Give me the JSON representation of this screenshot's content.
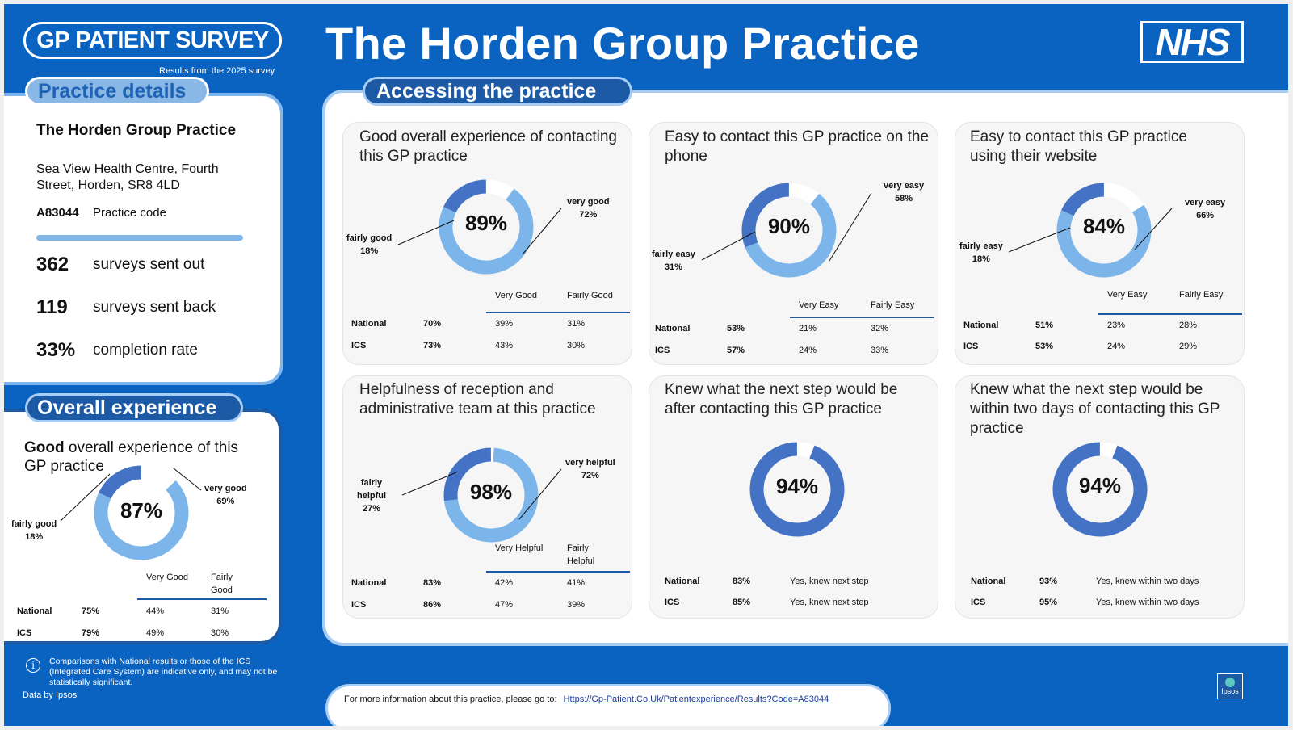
{
  "header": {
    "survey_badge": "GP PATIENT SURVEY",
    "survey_sub": "Results from the 2025 survey",
    "title": "The Horden Group Practice",
    "nhs_logo": "NHS"
  },
  "practice_details": {
    "tab": "Practice details",
    "name": "The Horden Group Practice",
    "address": "Sea View Health Centre, Fourth Street, Horden, SR8 4LD",
    "code": "A83044",
    "code_label": "Practice code",
    "stats": [
      {
        "value": "362",
        "label": "surveys sent out"
      },
      {
        "value": "119",
        "label": "surveys sent back"
      },
      {
        "value": "33%",
        "label": "completion rate"
      }
    ]
  },
  "overall": {
    "tab": "Overall experience",
    "heading_bold": "Good",
    "heading_rest": "overall experience of this GP practice",
    "center": "87%",
    "label_a": [
      "very good",
      "69%"
    ],
    "label_b": [
      "fairly good",
      "18%"
    ],
    "col_a": [
      "Very Good"
    ],
    "col_b": [
      "Fairly",
      "Good"
    ],
    "rows": [
      [
        "National",
        "75%",
        "44%",
        "31%"
      ],
      [
        "ICS",
        "79%",
        "49%",
        "30%"
      ]
    ]
  },
  "accessing": {
    "tab": "Accessing the practice",
    "cards": [
      {
        "title": "Good overall experience of contacting this GP practice",
        "center": "89%",
        "label_a": [
          "very good",
          "72%"
        ],
        "label_b": [
          "fairly good",
          "18%"
        ],
        "col_a": [
          "Very Good"
        ],
        "col_b": [
          "Fairly Good"
        ],
        "rows": [
          [
            "National",
            "70%",
            "39%",
            "31%"
          ],
          [
            "ICS",
            "73%",
            "43%",
            "30%"
          ]
        ]
      },
      {
        "title": "Easy to contact this GP practice on the phone",
        "center": "90%",
        "label_a": [
          "very easy",
          "58%"
        ],
        "label_b": [
          "fairly easy",
          "31%"
        ],
        "col_a": [
          "Very Easy"
        ],
        "col_b": [
          "Fairly Easy"
        ],
        "rows": [
          [
            "National",
            "53%",
            "21%",
            "32%"
          ],
          [
            "ICS",
            "57%",
            "24%",
            "33%"
          ]
        ]
      },
      {
        "title": "Easy to contact this GP practice using their website",
        "center": "84%",
        "label_a": [
          "very easy",
          "66%"
        ],
        "label_b": [
          "fairly easy",
          "18%"
        ],
        "col_a": [
          "Very Easy"
        ],
        "col_b": [
          "Fairly Easy"
        ],
        "rows": [
          [
            "National",
            "51%",
            "23%",
            "28%"
          ],
          [
            "ICS",
            "53%",
            "24%",
            "29%"
          ]
        ]
      },
      {
        "title": "Helpfulness of reception and administrative team at this practice",
        "center": "98%",
        "label_a": [
          "very helpful",
          "72%"
        ],
        "label_b": [
          "fairly",
          "helpful",
          "27%"
        ],
        "col_a": [
          "Very Helpful"
        ],
        "col_b": [
          "Fairly",
          "Helpful"
        ],
        "rows": [
          [
            "National",
            "83%",
            "42%",
            "41%"
          ],
          [
            "ICS",
            "86%",
            "47%",
            "39%"
          ]
        ]
      },
      {
        "title": "Knew what the next step would be after contacting this GP practice",
        "center": "94%",
        "rows": [
          [
            "National",
            "83%",
            "Yes, knew next step"
          ],
          [
            "ICS",
            "85%",
            "Yes, knew next step"
          ]
        ]
      },
      {
        "title": "Knew what the next step would be within two days of contacting this GP practice",
        "center": "94%",
        "rows": [
          [
            "National",
            "93%",
            "Yes, knew within two days"
          ],
          [
            "ICS",
            "95%",
            "Yes, knew within two days"
          ]
        ]
      }
    ]
  },
  "footer": {
    "disclaimer": "Comparisons with National results or those of the ICS (Integrated Care System) are indicative only, and may not be statistically significant.",
    "data_by": "Data by Ipsos",
    "info_text": "For more information about this practice, please go to:",
    "link": "Https://Gp-Patient.Co.Uk/Patientexperience/Results?Code=A83044",
    "ipsos": "Ipsos"
  },
  "chart_data": [
    {
      "type": "pie",
      "title": "Good overall experience of this GP practice",
      "categories": [
        "very good",
        "fairly good"
      ],
      "values": [
        69,
        18
      ],
      "total": 87
    },
    {
      "type": "pie",
      "title": "Good overall experience of contacting this GP practice",
      "categories": [
        "very good",
        "fairly good"
      ],
      "values": [
        72,
        18
      ],
      "total": 89
    },
    {
      "type": "pie",
      "title": "Easy to contact this GP practice on the phone",
      "categories": [
        "very easy",
        "fairly easy"
      ],
      "values": [
        58,
        31
      ],
      "total": 90
    },
    {
      "type": "pie",
      "title": "Easy to contact this GP practice using their website",
      "categories": [
        "very easy",
        "fairly easy"
      ],
      "values": [
        66,
        18
      ],
      "total": 84
    },
    {
      "type": "pie",
      "title": "Helpfulness of reception and administrative team at this practice",
      "categories": [
        "very helpful",
        "fairly helpful"
      ],
      "values": [
        72,
        27
      ],
      "total": 98
    },
    {
      "type": "pie",
      "title": "Knew what the next step would be after contacting this GP practice",
      "values": [
        94
      ],
      "total": 94
    },
    {
      "type": "pie",
      "title": "Knew what the next step would be within two days of contacting this GP practice",
      "values": [
        94
      ],
      "total": 94
    }
  ],
  "colors": {
    "background": "#0a63c1",
    "very": "#4472c4",
    "fairly": "#7cb5e9",
    "remainder": "#ffffff",
    "rule": "#1d5aa6",
    "panel_border": "#7eb7ee"
  }
}
